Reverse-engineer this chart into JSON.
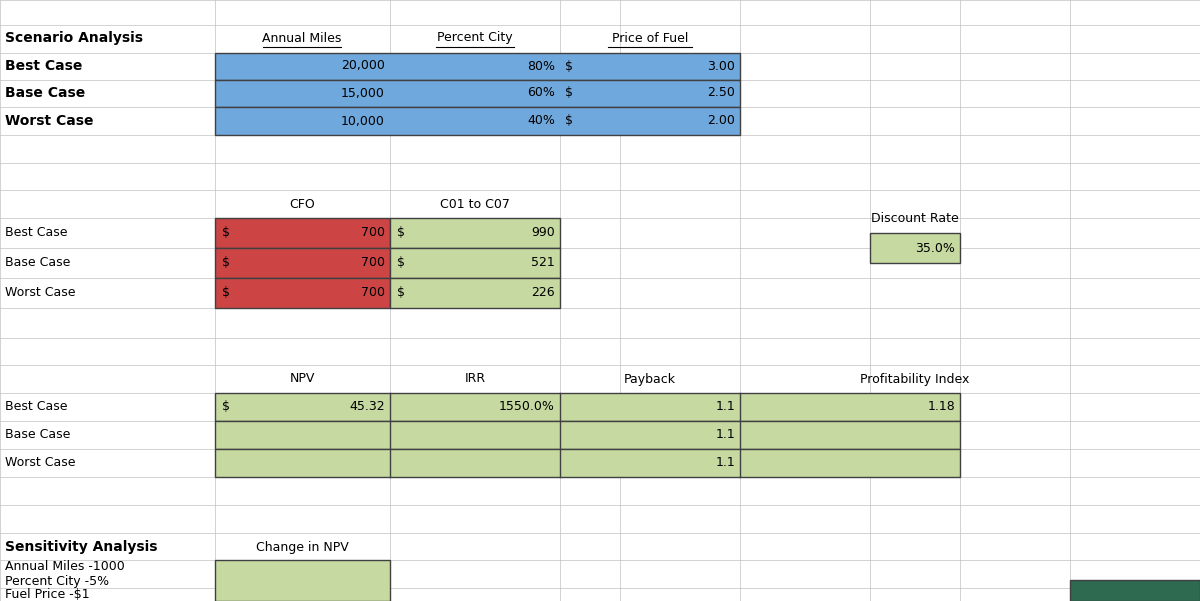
{
  "fig_width": 12.0,
  "fig_height": 6.01,
  "bg_color": "#ffffff",
  "grid_color": "#c0c0c0",
  "blue_fill": "#6fa8dc",
  "red_fill": "#cc4444",
  "green_fill": "#c6d9a0",
  "dark_green_fill": "#2d6a4f",
  "scenario_labels": [
    "Best Case",
    "Base Case",
    "Worst Case"
  ],
  "annual_miles": [
    "20,000",
    "15,000",
    "10,000"
  ],
  "pct_city": [
    "80%",
    "60%",
    "40%"
  ],
  "fuel_prices": [
    "3.00",
    "2.50",
    "2.00"
  ],
  "cfo_values": [
    "700",
    "700",
    "700"
  ],
  "c_values": [
    "990",
    "521",
    "226"
  ],
  "discount_rate": "35.0%",
  "npv_best": "45.32",
  "irr_best": "1550.0%",
  "payback_all": "1.1",
  "pi_best": "1.18",
  "sensitivity_labels": [
    "Annual Miles -1000",
    "Percent City -5%",
    "Fuel Price -$1"
  ]
}
